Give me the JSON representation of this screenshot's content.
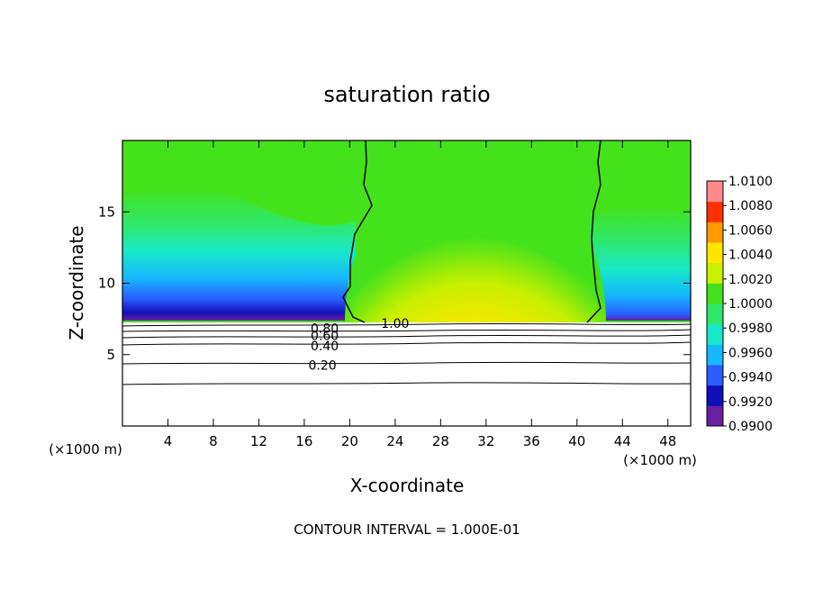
{
  "chart_data": {
    "type": "heatmap",
    "title": "saturation ratio",
    "xlabel": "X-coordinate",
    "ylabel": "Z-coordinate",
    "x_unit": "(×1000 m)",
    "y_unit": "(×1000 m)",
    "xlim": [
      0,
      50
    ],
    "ylim": [
      0,
      20
    ],
    "x_ticks": [
      4,
      8,
      12,
      16,
      20,
      24,
      28,
      32,
      36,
      40,
      44,
      48
    ],
    "y_ticks": [
      5,
      10,
      15
    ],
    "colorbar": {
      "levels": [
        "1.0100",
        "1.0080",
        "1.0060",
        "1.0040",
        "1.0020",
        "1.0000",
        "0.9980",
        "0.9960",
        "0.9940",
        "0.9920",
        "0.9900"
      ],
      "min": 0.99,
      "max": 1.01,
      "colormap": [
        "#6a1fa0",
        "#1010b8",
        "#2a5cff",
        "#16b8ff",
        "#17e8c8",
        "#2ee86a",
        "#44e21a",
        "#c8f000",
        "#ffe600",
        "#ff9a00",
        "#ff3000",
        "#ff8a8a"
      ]
    },
    "contour_labels": [
      {
        "text": "1.00",
        "x": 24.0,
        "z": 7.2
      },
      {
        "text": "0.80",
        "x": 17.8,
        "z": 6.85
      },
      {
        "text": "0.60",
        "x": 17.8,
        "z": 6.35
      },
      {
        "text": "0.40",
        "x": 17.8,
        "z": 5.6
      },
      {
        "text": "0.20",
        "x": 17.6,
        "z": 4.25
      }
    ],
    "contour_interval_text": "CONTOUR INTERVAL = 1.000E-01"
  }
}
